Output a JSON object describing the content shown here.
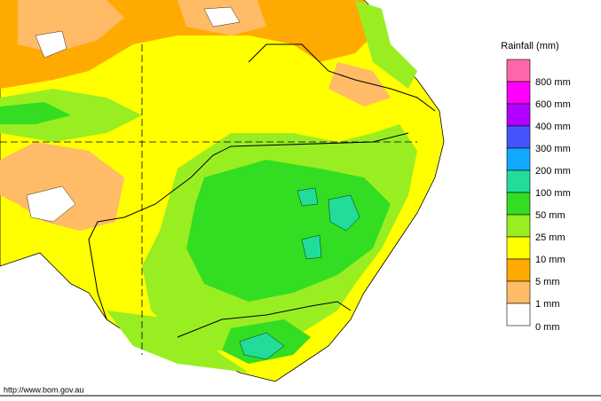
{
  "legend": {
    "title": "Rainfall (mm)",
    "items": [
      {
        "label": null,
        "color": "#ff66aa"
      },
      {
        "label": "800 mm",
        "color": "#ff00ff"
      },
      {
        "label": "600 mm",
        "color": "#b000ff"
      },
      {
        "label": "400 mm",
        "color": "#4455ff"
      },
      {
        "label": "300 mm",
        "color": "#11aaff"
      },
      {
        "label": "200 mm",
        "color": "#22dd99"
      },
      {
        "label": "100 mm",
        "color": "#33dd22"
      },
      {
        "label": "50 mm",
        "color": "#99ee22"
      },
      {
        "label": "25 mm",
        "color": "#ffff00"
      },
      {
        "label": "10 mm",
        "color": "#ffaa00"
      },
      {
        "label": "5 mm",
        "color": "#ffbb66"
      },
      {
        "label": "1 mm",
        "color": "#ffffff"
      }
    ],
    "bottom_label": "0 mm"
  },
  "footer": {
    "url": "http://www.bom.gov.au"
  }
}
